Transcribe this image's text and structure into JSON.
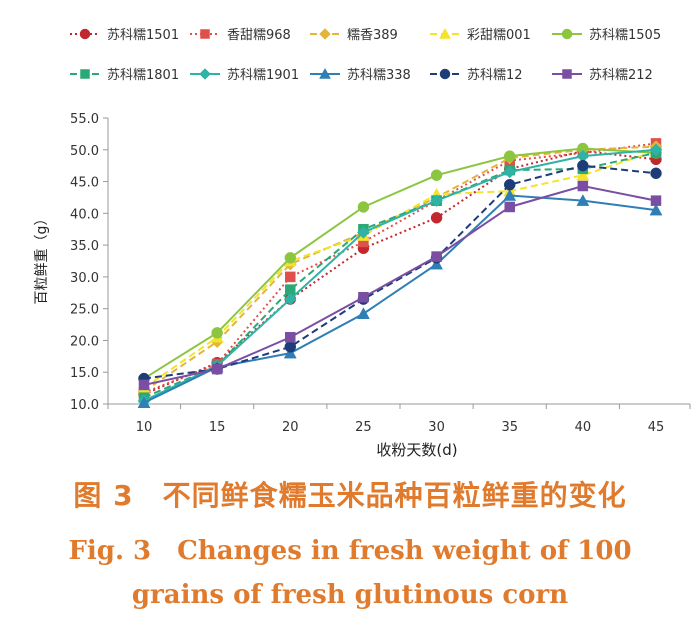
{
  "chart_data": {
    "type": "line",
    "xlabel": "收粉天数(d)",
    "ylabel": "百粒鲜重（g）",
    "x": [
      10,
      15,
      20,
      25,
      30,
      35,
      40,
      45
    ],
    "x_ticks": [
      "10",
      "15",
      "20",
      "25",
      "30",
      "35",
      "40",
      "45"
    ],
    "ylim": [
      10,
      55
    ],
    "y_ticks": [
      "10.0",
      "15.0",
      "20.0",
      "25.0",
      "30.0",
      "35.0",
      "40.0",
      "45.0",
      "50.0",
      "55.0"
    ],
    "grid": false,
    "legend_position": "top",
    "series": [
      {
        "name": "苏科糯1501",
        "color": "#c0282d",
        "dash": "dot",
        "marker": "circle",
        "values": [
          11.5,
          16.5,
          26.5,
          34.5,
          39.3,
          47.0,
          49.8,
          48.5
        ]
      },
      {
        "name": "香甜糯968",
        "color": "#e0504a",
        "dash": "dot",
        "marker": "square",
        "values": [
          11.8,
          16.3,
          30.0,
          35.5,
          42.0,
          48.3,
          49.5,
          51.0
        ]
      },
      {
        "name": "糯香389",
        "color": "#e3b53a",
        "dash": "dash",
        "marker": "diamond",
        "values": [
          12.0,
          19.8,
          32.0,
          37.0,
          42.5,
          48.7,
          50.0,
          50.5
        ]
      },
      {
        "name": "彩甜糯001",
        "color": "#f3e32a",
        "dash": "dash",
        "marker": "triangle",
        "values": [
          12.5,
          20.5,
          32.5,
          36.5,
          43.0,
          43.5,
          46.0,
          49.8
        ]
      },
      {
        "name": "苏科糯1505",
        "color": "#8cc53f",
        "dash": "solid",
        "marker": "circle",
        "values": [
          14.0,
          21.2,
          33.0,
          41.0,
          46.0,
          49.0,
          50.2,
          49.5
        ]
      },
      {
        "name": "苏科糯1801",
        "color": "#2aa876",
        "dash": "dash",
        "marker": "square",
        "values": [
          11.0,
          16.0,
          28.0,
          37.5,
          42.0,
          46.8,
          47.0,
          49.5
        ]
      },
      {
        "name": "苏科糯1901",
        "color": "#2fb3a6",
        "dash": "solid",
        "marker": "diamond",
        "values": [
          10.5,
          16.0,
          26.5,
          37.0,
          42.0,
          46.5,
          49.0,
          50.0
        ]
      },
      {
        "name": "苏科糯338",
        "color": "#2e7fb5",
        "dash": "solid",
        "marker": "triangle",
        "values": [
          10.2,
          15.8,
          18.0,
          24.2,
          32.0,
          42.8,
          42.0,
          40.5
        ]
      },
      {
        "name": "苏科糯12",
        "color": "#1d3c78",
        "dash": "dash",
        "marker": "circle",
        "values": [
          14.0,
          15.5,
          19.0,
          26.5,
          33.0,
          44.5,
          47.5,
          46.3
        ]
      },
      {
        "name": "苏科糯212",
        "color": "#7a4fa3",
        "dash": "solid",
        "marker": "square",
        "values": [
          13.0,
          15.5,
          20.5,
          26.8,
          33.2,
          41.0,
          44.3,
          42.0
        ]
      }
    ]
  },
  "caption": {
    "chinese": "图 3　不同鲜食糯玉米品种百粒鲜重的变化",
    "english_line1": "Fig. 3　Changes in fresh weight of 100",
    "english_line2": "grains of fresh glutinous corn"
  }
}
